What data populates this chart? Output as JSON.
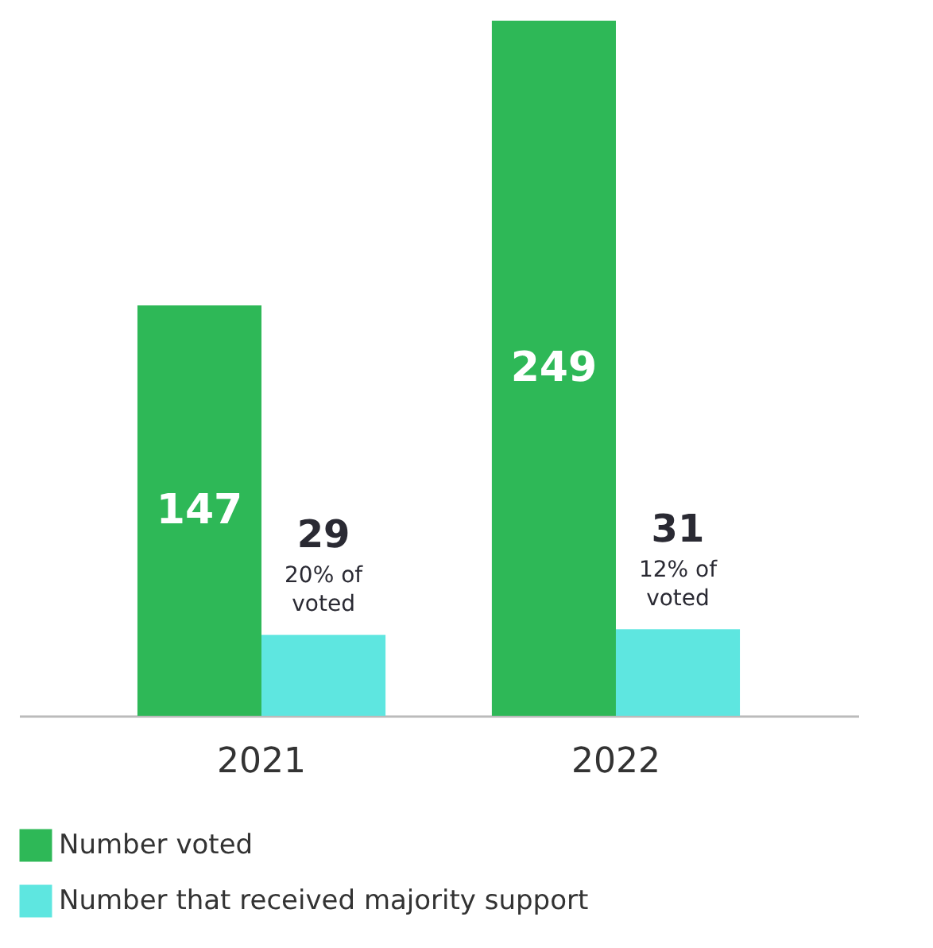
{
  "chart_data": {
    "type": "bar",
    "categories": [
      "2021",
      "2022"
    ],
    "series": [
      {
        "name": "Number voted",
        "color": "#2eb857",
        "values": [
          147,
          249
        ]
      },
      {
        "name": "Number that received majority support",
        "color": "#5ee6e0",
        "values": [
          29,
          31
        ]
      }
    ],
    "data_labels": true,
    "grid": false,
    "legend": "bottom left",
    "annotations": [
      {
        "text": "20% of voted",
        "x": "2021",
        "y": 29
      },
      {
        "text": "12% of voted",
        "x": "2022",
        "y": 31
      }
    ]
  }
}
